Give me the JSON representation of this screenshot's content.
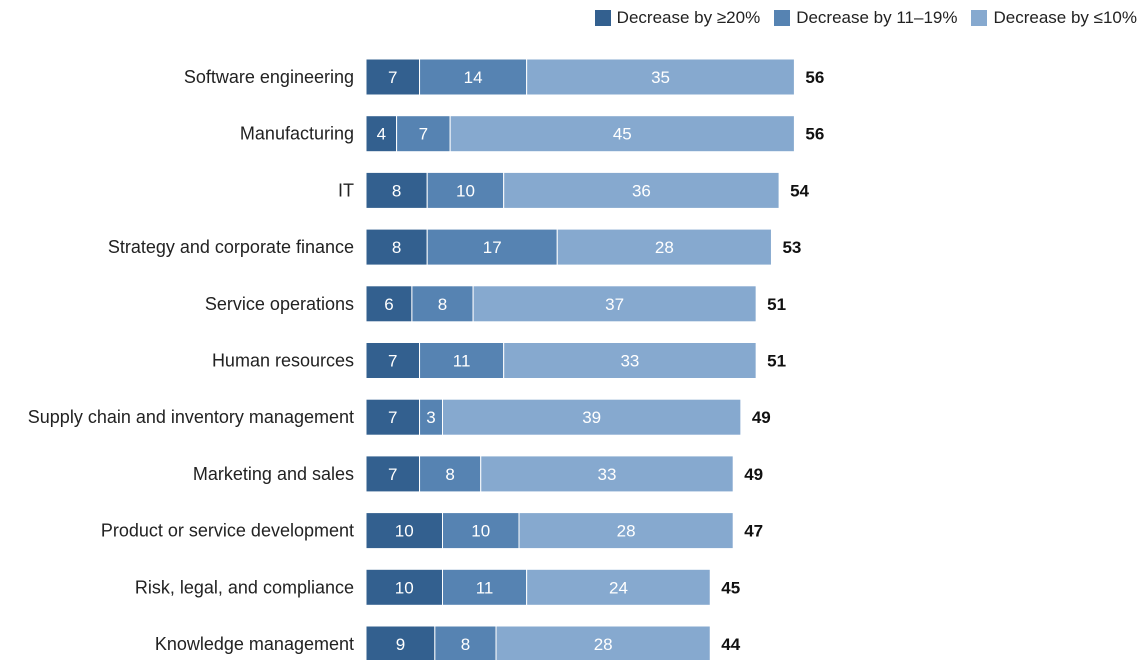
{
  "chart_data": {
    "type": "bar",
    "orientation": "horizontal",
    "stacked": true,
    "title": "",
    "xlabel": "",
    "ylabel": "",
    "legend_position": "top-right",
    "grid": false,
    "categories": [
      "Software engineering",
      "Manufacturing",
      "IT",
      "Strategy and corporate finance",
      "Service operations",
      "Human resources",
      "Supply chain and inventory management",
      "Marketing and sales",
      "Product or service development",
      "Risk, legal, and compliance",
      "Knowledge management"
    ],
    "series": [
      {
        "name": "Decrease by ≥20%",
        "color": "#33608f",
        "values": [
          7,
          4,
          8,
          8,
          6,
          7,
          7,
          7,
          10,
          10,
          9
        ]
      },
      {
        "name": "Decrease by 11–19%",
        "color": "#5683b2",
        "values": [
          14,
          7,
          10,
          17,
          8,
          11,
          3,
          8,
          10,
          11,
          8
        ]
      },
      {
        "name": "Decrease by ≤10%",
        "color": "#86a9cf",
        "values": [
          35,
          45,
          36,
          28,
          37,
          33,
          39,
          33,
          28,
          24,
          28
        ]
      }
    ],
    "totals": [
      56,
      56,
      54,
      53,
      51,
      51,
      49,
      49,
      47,
      45,
      44
    ]
  }
}
